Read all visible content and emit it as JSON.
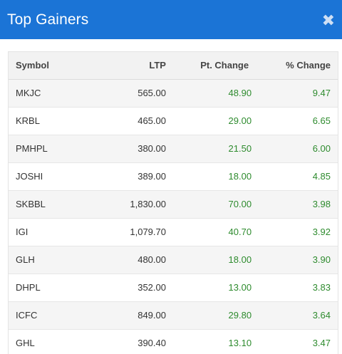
{
  "header": {
    "title": "Top Gainers",
    "close_glyph": "✖"
  },
  "table": {
    "columns": [
      "Symbol",
      "LTP",
      "Pt. Change",
      "% Change"
    ],
    "rows": [
      {
        "symbol": "MKJC",
        "ltp": "565.00",
        "pt_change": "48.90",
        "pct_change": "9.47"
      },
      {
        "symbol": "KRBL",
        "ltp": "465.00",
        "pt_change": "29.00",
        "pct_change": "6.65"
      },
      {
        "symbol": "PMHPL",
        "ltp": "380.00",
        "pt_change": "21.50",
        "pct_change": "6.00"
      },
      {
        "symbol": "JOSHI",
        "ltp": "389.00",
        "pt_change": "18.00",
        "pct_change": "4.85"
      },
      {
        "symbol": "SKBBL",
        "ltp": "1,830.00",
        "pt_change": "70.00",
        "pct_change": "3.98"
      },
      {
        "symbol": "IGI",
        "ltp": "1,079.70",
        "pt_change": "40.70",
        "pct_change": "3.92"
      },
      {
        "symbol": "GLH",
        "ltp": "480.00",
        "pt_change": "18.00",
        "pct_change": "3.90"
      },
      {
        "symbol": "DHPL",
        "ltp": "352.00",
        "pt_change": "13.00",
        "pct_change": "3.83"
      },
      {
        "symbol": "ICFC",
        "ltp": "849.00",
        "pt_change": "29.80",
        "pct_change": "3.64"
      },
      {
        "symbol": "GHL",
        "ltp": "390.40",
        "pt_change": "13.10",
        "pct_change": "3.47"
      }
    ]
  },
  "colors": {
    "header_bg": "#1b74d6",
    "positive": "#2e8b2e"
  },
  "icons": {
    "close": "close-icon"
  }
}
